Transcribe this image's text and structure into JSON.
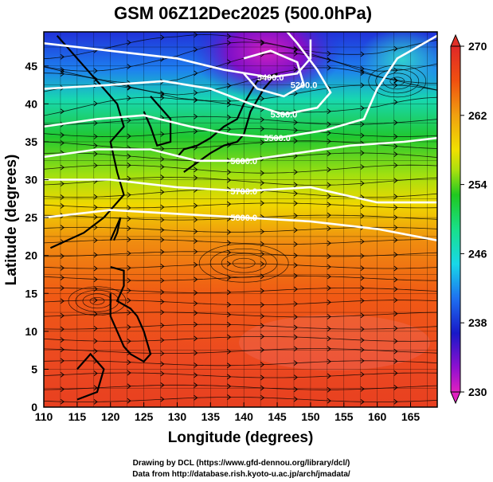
{
  "title": "GSM 06Z12Dec2025 (500.0hPa)",
  "x_axis": {
    "label": "Longitude (degrees)",
    "ticks": [
      "110",
      "115",
      "120",
      "125",
      "130",
      "135",
      "140",
      "145",
      "150",
      "155",
      "160",
      "165"
    ]
  },
  "y_axis": {
    "label": "Latitude  (degrees)",
    "ticks": [
      "0",
      "5",
      "10",
      "15",
      "20",
      "25",
      "30",
      "35",
      "40",
      "45"
    ]
  },
  "colorbar": {
    "ticks": [
      "230",
      "238",
      "246",
      "254",
      "262",
      "270"
    ],
    "colors": [
      "#e020c0",
      "#7a00c8",
      "#1a1ad0",
      "#1e7ef0",
      "#18d0e0",
      "#18e090",
      "#20c820",
      "#90e010",
      "#f0e000",
      "#f0a010",
      "#f05010",
      "#e02020"
    ]
  },
  "contours": [
    {
      "label": "5400.0",
      "lat": 44
    },
    {
      "label": "5300.0",
      "lat": 41
    },
    {
      "label": "5200.0",
      "lat": 40
    },
    {
      "label": "5500.0",
      "lat": 35
    },
    {
      "label": "5600.0",
      "lat": 33
    },
    {
      "label": "5700.0",
      "lat": 29
    },
    {
      "label": "5800.0",
      "lat": 25
    }
  ],
  "credits": [
    "Drawing by DCL (https://www.gfd-dennou.org/library/dcl/)",
    "Data from http://database.rish.kyoto-u.ac.jp/arch/jmadata/"
  ]
}
